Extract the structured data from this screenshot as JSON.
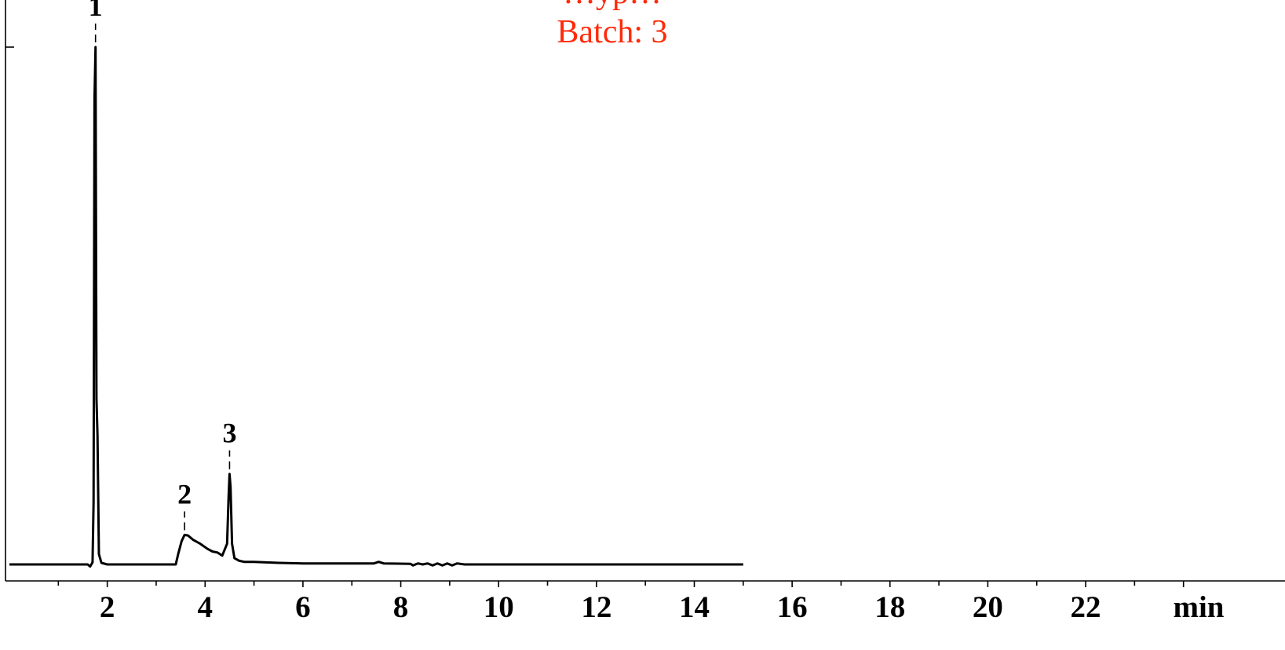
{
  "chart_data": {
    "type": "line",
    "title_lines": [
      "…yp…",
      "Batch: 3"
    ],
    "title_color": "#ff2a0a",
    "xlabel": "min",
    "ylabel": "",
    "xlim": [
      0,
      25
    ],
    "ylim": [
      0,
      1.0
    ],
    "x_ticks": [
      "2",
      "4",
      "6",
      "8",
      "10",
      "12",
      "14",
      "16",
      "18",
      "20",
      "22"
    ],
    "x_tick_values": [
      2,
      4,
      6,
      8,
      10,
      12,
      14,
      16,
      18,
      20,
      22
    ],
    "grid": false,
    "legend": "none",
    "series": [
      {
        "points": [
          [
            0.0,
            0.0
          ],
          [
            1.6,
            0.0
          ],
          [
            1.65,
            -0.004
          ],
          [
            1.7,
            0.004
          ],
          [
            1.72,
            0.12
          ],
          [
            1.74,
            0.9
          ],
          [
            1.76,
            1.0
          ],
          [
            1.78,
            0.32
          ],
          [
            1.8,
            0.25
          ],
          [
            1.83,
            0.02
          ],
          [
            1.88,
            0.003
          ],
          [
            2.0,
            0.0
          ],
          [
            3.4,
            0.0
          ],
          [
            3.45,
            0.02
          ],
          [
            3.52,
            0.045
          ],
          [
            3.58,
            0.057
          ],
          [
            3.65,
            0.056
          ],
          [
            3.75,
            0.048
          ],
          [
            3.9,
            0.04
          ],
          [
            4.05,
            0.03
          ],
          [
            4.15,
            0.025
          ],
          [
            4.25,
            0.023
          ],
          [
            4.35,
            0.017
          ],
          [
            4.45,
            0.04
          ],
          [
            4.48,
            0.13
          ],
          [
            4.5,
            0.175
          ],
          [
            4.52,
            0.15
          ],
          [
            4.55,
            0.04
          ],
          [
            4.6,
            0.012
          ],
          [
            4.7,
            0.007
          ],
          [
            4.8,
            0.005
          ],
          [
            5.0,
            0.005
          ],
          [
            5.25,
            0.004
          ],
          [
            5.5,
            0.003
          ],
          [
            6.0,
            0.002
          ],
          [
            7.0,
            0.002
          ],
          [
            7.45,
            0.002
          ],
          [
            7.55,
            0.005
          ],
          [
            7.65,
            0.002
          ],
          [
            8.2,
            0.001
          ],
          [
            8.25,
            -0.002
          ],
          [
            8.35,
            0.002
          ],
          [
            8.45,
            0.0
          ],
          [
            8.55,
            0.002
          ],
          [
            8.65,
            -0.002
          ],
          [
            8.75,
            0.002
          ],
          [
            8.85,
            -0.002
          ],
          [
            8.95,
            0.002
          ],
          [
            9.05,
            -0.002
          ],
          [
            9.15,
            0.002
          ],
          [
            9.3,
            0.0
          ],
          [
            15.0,
            0.0
          ]
        ]
      }
    ],
    "peaks": [
      {
        "label": "1",
        "x": 1.76,
        "y": 1.0
      },
      {
        "label": "2",
        "x": 3.58,
        "y": 0.057
      },
      {
        "label": "3",
        "x": 4.5,
        "y": 0.175
      }
    ]
  }
}
